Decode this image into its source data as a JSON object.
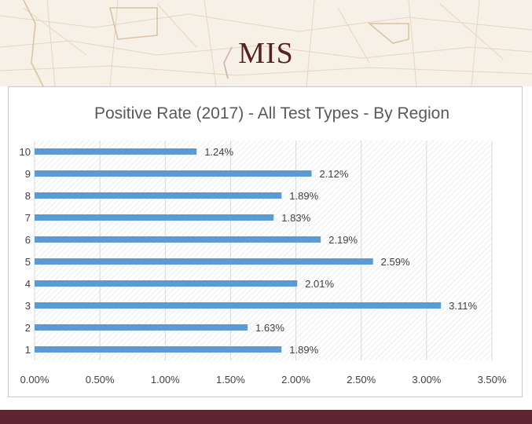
{
  "slide": {
    "title": "MIS",
    "accent": "#5e2432",
    "title_color": "#5a1f1f"
  },
  "chart_data": {
    "type": "bar",
    "orientation": "horizontal",
    "title": "Positive Rate (2017) - All Test Types - By Region",
    "categories": [
      "1",
      "2",
      "3",
      "4",
      "5",
      "6",
      "7",
      "8",
      "9",
      "10"
    ],
    "values": [
      1.89,
      1.63,
      3.11,
      2.01,
      2.59,
      2.19,
      1.83,
      1.89,
      2.12,
      1.24
    ],
    "data_labels": [
      "1.89%",
      "1.63%",
      "3.11%",
      "2.01%",
      "2.59%",
      "2.19%",
      "1.83%",
      "1.89%",
      "2.12%",
      "1.24%"
    ],
    "x_ticks": [
      "0.00%",
      "0.50%",
      "1.00%",
      "1.50%",
      "2.00%",
      "2.50%",
      "3.00%",
      "3.50%"
    ],
    "xlim": [
      0,
      3.5
    ],
    "xlabel": "",
    "ylabel": "",
    "grid": true,
    "bar_color": "#5b9bd5",
    "legend": "none"
  }
}
